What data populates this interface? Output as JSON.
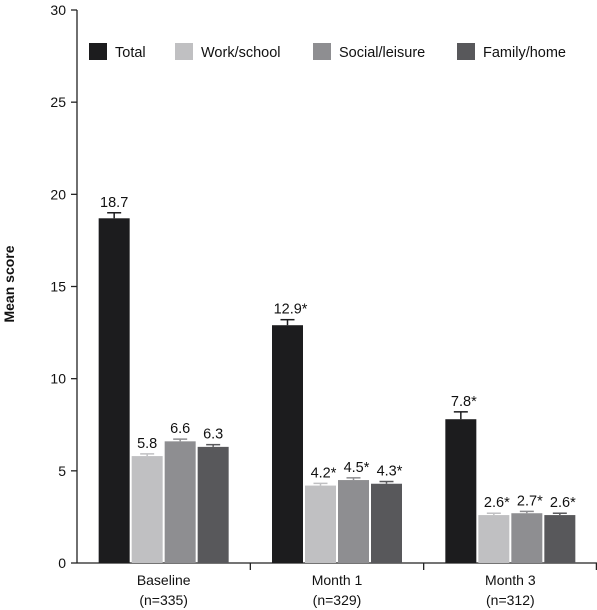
{
  "chart_data": {
    "type": "bar",
    "title": "",
    "xlabel": "",
    "ylabel": "Mean score",
    "ylim": [
      0,
      30
    ],
    "yticks": [
      0,
      5,
      10,
      15,
      20,
      25,
      30
    ],
    "grid": false,
    "legend_position": "top",
    "categories": [
      [
        "Baseline",
        "(n=335)"
      ],
      [
        "Month 1",
        "(n=329)"
      ],
      [
        "Month 3",
        "(n=312)"
      ]
    ],
    "series": [
      {
        "name": "Total",
        "color": "#1c1c1e",
        "values": [
          18.7,
          12.9,
          7.8
        ],
        "errors": [
          0.3,
          0.3,
          0.4
        ],
        "labels": [
          "18.7",
          "12.9*",
          "7.8*"
        ]
      },
      {
        "name": "Work/school",
        "color": "#c0c0c2",
        "values": [
          5.8,
          4.2,
          2.6
        ],
        "errors": [
          0.12,
          0.12,
          0.1
        ],
        "labels": [
          "5.8",
          "4.2*",
          "2.6*"
        ]
      },
      {
        "name": "Social/leisure",
        "color": "#8e8e91",
        "values": [
          6.6,
          4.5,
          2.7
        ],
        "errors": [
          0.12,
          0.12,
          0.1
        ],
        "labels": [
          "6.6",
          "4.5*",
          "2.7*"
        ]
      },
      {
        "name": "Family/home",
        "color": "#58585b",
        "values": [
          6.3,
          4.3,
          2.6
        ],
        "errors": [
          0.12,
          0.12,
          0.1
        ],
        "labels": [
          "6.3",
          "4.3*",
          "2.6*"
        ]
      }
    ]
  }
}
